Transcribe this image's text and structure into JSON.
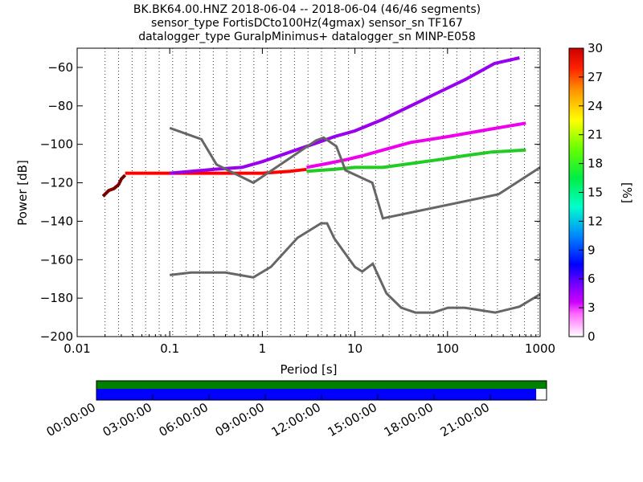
{
  "title": {
    "line1": "BK.BK64.00.HNZ   2018-06-04 -- 2018-06-04  (46/46 segments)",
    "line2": "sensor_type FortisDCto100Hz(4gmax) sensor_sn TF167",
    "line3": "datalogger_type GuralpMinimus+ datalogger_sn MINP-E058"
  },
  "chart_data": {
    "type": "heatmap",
    "xlabel": "Period [s]",
    "ylabel": "Power [dB]",
    "xscale": "log",
    "xlim": [
      0.01,
      1000
    ],
    "ylim": [
      -200,
      -50
    ],
    "xticks": [
      0.01,
      0.1,
      1,
      10,
      100,
      1000
    ],
    "xtick_labels": [
      "0.01",
      "0.1",
      "1",
      "10",
      "100",
      "1000"
    ],
    "yticks": [
      -200,
      -180,
      -160,
      -140,
      -120,
      -100,
      -80,
      -60
    ],
    "ytick_labels": [
      "−200",
      "−180",
      "−160",
      "−140",
      "−120",
      "−100",
      "−80",
      "−60"
    ],
    "grid": "dotted vertical at period bins",
    "colorbar": {
      "label": "[%]",
      "range": [
        0,
        30
      ],
      "ticks": [
        0,
        3,
        6,
        9,
        12,
        15,
        18,
        21,
        24,
        27,
        30
      ],
      "tick_labels": [
        "0",
        "3",
        "6",
        "9",
        "12",
        "15",
        "18",
        "21",
        "24",
        "27",
        "30"
      ]
    },
    "noise_models": {
      "color": "#666666",
      "high": {
        "period": [
          0.1,
          0.22,
          0.32,
          0.8,
          3.8,
          4.6,
          6.3,
          7.9,
          15.4,
          20,
          354.8,
          1000
        ],
        "power": [
          -91.5,
          -97.4,
          -110.5,
          -120,
          -98,
          -96.5,
          -101,
          -113.5,
          -120,
          -138.5,
          -126,
          -112
        ]
      },
      "low": {
        "period": [
          0.1,
          0.17,
          0.4,
          0.8,
          1.24,
          2.4,
          4.3,
          5,
          6,
          10,
          12,
          15.6,
          21.9,
          31.6,
          45,
          70,
          101,
          154,
          328,
          600,
          1000
        ],
        "power": [
          -168,
          -166.7,
          -166.7,
          -169.2,
          -163.7,
          -148.6,
          -141.1,
          -141.1,
          -149,
          -163.8,
          -166.2,
          -162.1,
          -177.5,
          -185,
          -187.5,
          -187.5,
          -185,
          -185,
          -187.5,
          -184.4,
          -178
        ]
      }
    },
    "ppsd_bands": [
      {
        "name": "band-low-period",
        "period": [
          0.019,
          0.022,
          0.025,
          0.028,
          0.03,
          0.033
        ],
        "power": [
          -127,
          -124,
          -123,
          -121,
          -118,
          -116
        ],
        "pct": 30,
        "color": "#7a0000"
      },
      {
        "name": "band-core",
        "period": [
          0.033,
          0.1,
          0.3,
          1,
          2,
          3
        ],
        "power": [
          -115,
          -115,
          -115,
          -115,
          -114,
          -113
        ],
        "pct": 30,
        "color": "#ff0000"
      },
      {
        "name": "band-upper",
        "period": [
          0.1,
          0.3,
          0.6,
          1,
          2,
          4,
          6,
          10,
          20,
          40,
          80,
          160,
          320,
          600
        ],
        "power": [
          -115,
          -113,
          -112,
          -109,
          -104,
          -99,
          -96,
          -93,
          -87,
          -80,
          -73,
          -66,
          -58,
          -55
        ],
        "pct": 2,
        "color": "#9900ee"
      },
      {
        "name": "band-mid",
        "period": [
          3,
          5,
          8,
          12,
          20,
          40,
          100,
          300,
          700
        ],
        "power": [
          -112,
          -110,
          -108,
          -106,
          -103,
          -99,
          -96,
          -92,
          -89
        ],
        "pct": 1,
        "color": "#ee00ee"
      },
      {
        "name": "band-noise-low",
        "period": [
          3,
          6,
          10,
          20,
          40,
          80,
          150,
          300,
          700
        ],
        "power": [
          -114,
          -113,
          -112,
          -112,
          -110,
          -108,
          -106,
          -104,
          -103
        ],
        "pct": 20,
        "color": "#22cc22"
      }
    ],
    "timeline": {
      "tick_labels": [
        "00:00:00",
        "03:00:00",
        "06:00:00",
        "09:00:00",
        "12:00:00",
        "15:00:00",
        "18:00:00",
        "21:00:00"
      ],
      "coverage_fraction": 0.977,
      "top_color": "#008000",
      "bottom_color": "#0000ff"
    }
  }
}
